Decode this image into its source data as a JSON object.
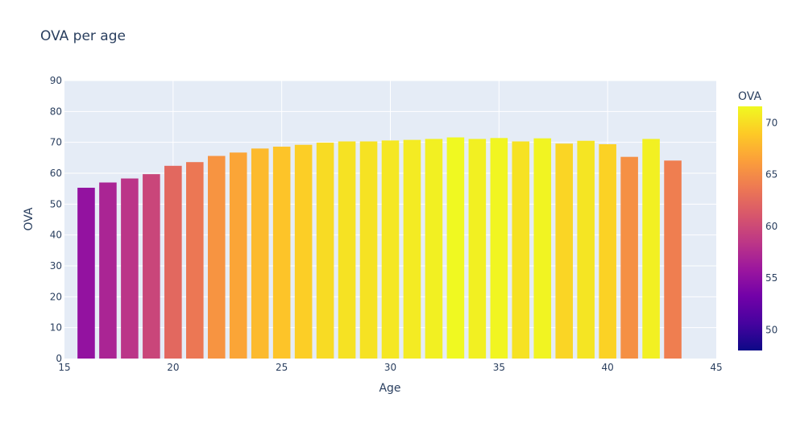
{
  "chart_data": {
    "type": "bar",
    "title": "OVA per age",
    "xlabel": "Age",
    "ylabel": "OVA",
    "xlim": [
      15,
      45
    ],
    "ylim": [
      0,
      90
    ],
    "xticks": [
      15,
      20,
      25,
      30,
      35,
      40,
      45
    ],
    "yticks": [
      0,
      10,
      20,
      30,
      40,
      50,
      60,
      70,
      80,
      90
    ],
    "x": [
      16,
      17,
      18,
      19,
      20,
      21,
      22,
      23,
      24,
      25,
      26,
      27,
      28,
      29,
      30,
      31,
      32,
      33,
      34,
      35,
      36,
      37,
      38,
      39,
      40,
      41,
      42,
      43
    ],
    "values": [
      55.3,
      57.0,
      58.3,
      59.7,
      62.4,
      63.6,
      65.6,
      66.7,
      68.0,
      68.6,
      69.2,
      69.9,
      70.3,
      70.3,
      70.6,
      70.8,
      71.1,
      71.6,
      71.1,
      71.4,
      70.3,
      71.3,
      69.6,
      70.5,
      69.4,
      65.3,
      71.1,
      64.1
    ],
    "colorbar": {
      "title": "OVA",
      "range": [
        48,
        71.6
      ],
      "ticks": [
        50,
        55,
        60,
        65,
        70
      ]
    }
  },
  "colors": {
    "plot_bg": "#e5ecf6",
    "grid": "#ffffff",
    "text": "#2a3f5f"
  }
}
